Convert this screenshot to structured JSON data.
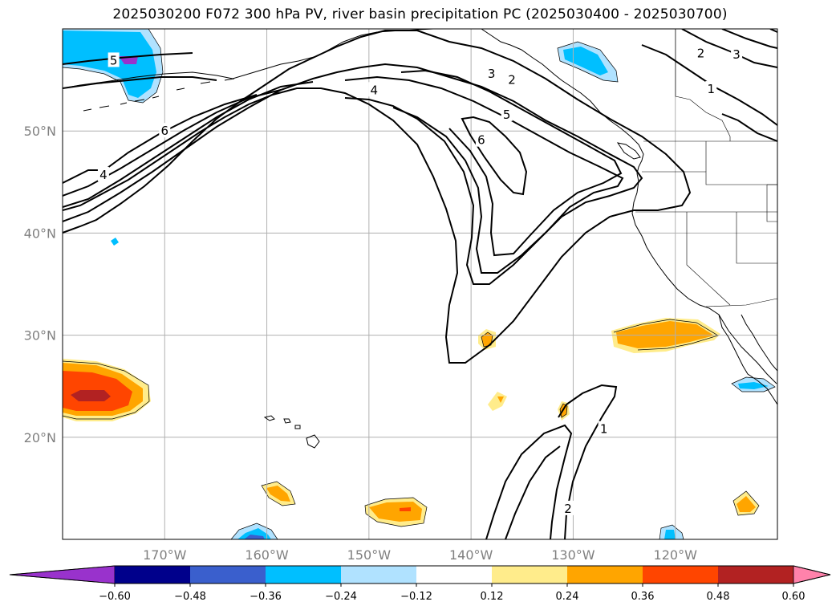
{
  "title": "2025030200 F072 300 hPa PV, river basin precipitation PC (2025030400 - 2025030700)",
  "chart_data": {
    "type": "contour_map",
    "projection": "PlateCarree",
    "lon_range": [
      -180,
      -110
    ],
    "lat_range": [
      10,
      60
    ],
    "grid": true,
    "x_ticks": [
      -170,
      -160,
      -150,
      -140,
      -130,
      -120
    ],
    "x_tick_labels": [
      "170°W",
      "160°W",
      "150°W",
      "140°W",
      "130°W",
      "120°W"
    ],
    "y_ticks": [
      20,
      30,
      40,
      50
    ],
    "y_tick_labels": [
      "20°N",
      "30°N",
      "40°N",
      "50°N"
    ],
    "pv_contour_levels": [
      1,
      2,
      3,
      4,
      5,
      6
    ],
    "pv_contour_labels": [
      {
        "text": "5",
        "lon": -175,
        "lat": 56.9
      },
      {
        "text": "6",
        "lon": -170,
        "lat": 50.0
      },
      {
        "text": "4",
        "lon": -176,
        "lat": 45.7
      },
      {
        "text": "4",
        "lon": -149.5,
        "lat": 54.0
      },
      {
        "text": "3",
        "lon": -138,
        "lat": 55.6
      },
      {
        "text": "2",
        "lon": -136,
        "lat": 55.0
      },
      {
        "text": "5",
        "lon": -136.5,
        "lat": 51.6
      },
      {
        "text": "6",
        "lon": -139,
        "lat": 49.1
      },
      {
        "text": "2",
        "lon": -117.5,
        "lat": 57.6
      },
      {
        "text": "3",
        "lon": -114,
        "lat": 57.5
      },
      {
        "text": "1",
        "lon": -116.5,
        "lat": 54.1
      },
      {
        "text": "1",
        "lon": -127,
        "lat": 20.8
      },
      {
        "text": "2",
        "lon": -130.5,
        "lat": 13.0
      }
    ],
    "colorbar": {
      "extend": "both",
      "ticks": [
        -0.6,
        -0.48,
        -0.36,
        -0.24,
        -0.12,
        0.12,
        0.24,
        0.36,
        0.48,
        0.6
      ],
      "tick_labels": [
        "−0.60",
        "−0.48",
        "−0.36",
        "−0.24",
        "−0.12",
        "0.12",
        "0.24",
        "0.36",
        "0.48",
        "0.60"
      ],
      "colors": [
        "#9932cc",
        "#00008b",
        "#3a5fcd",
        "#00bfff",
        "#b0e2ff",
        "#ffffff",
        "#ffec8b",
        "#ffa500",
        "#ff4500",
        "#b22222",
        "#ff82ab"
      ]
    },
    "precip_pc_regions": [
      {
        "lon": -174.5,
        "lat": 57.2,
        "value": -0.3
      },
      {
        "lon": -176.0,
        "lat": 24.4,
        "value": 0.45
      },
      {
        "lon": -126.5,
        "lat": 55.9,
        "value": -0.28
      },
      {
        "lon": -119.5,
        "lat": 30.4,
        "value": 0.3
      },
      {
        "lon": -111.5,
        "lat": 25.0,
        "value": -0.3
      },
      {
        "lon": -148.5,
        "lat": 12.7,
        "value": 0.28
      },
      {
        "lon": -159.0,
        "lat": 14.5,
        "value": 0.28
      },
      {
        "lon": -112.2,
        "lat": 13.4,
        "value": 0.3
      },
      {
        "lon": -160.5,
        "lat": 10.4,
        "value": -0.4
      },
      {
        "lon": -140.0,
        "lat": 29.5,
        "value": 0.28
      },
      {
        "lon": -139.5,
        "lat": 23.5,
        "value": 0.2
      },
      {
        "lon": -131.8,
        "lat": 22.8,
        "value": 0.28
      },
      {
        "lon": -121.5,
        "lat": 10.7,
        "value": -0.28
      }
    ]
  }
}
